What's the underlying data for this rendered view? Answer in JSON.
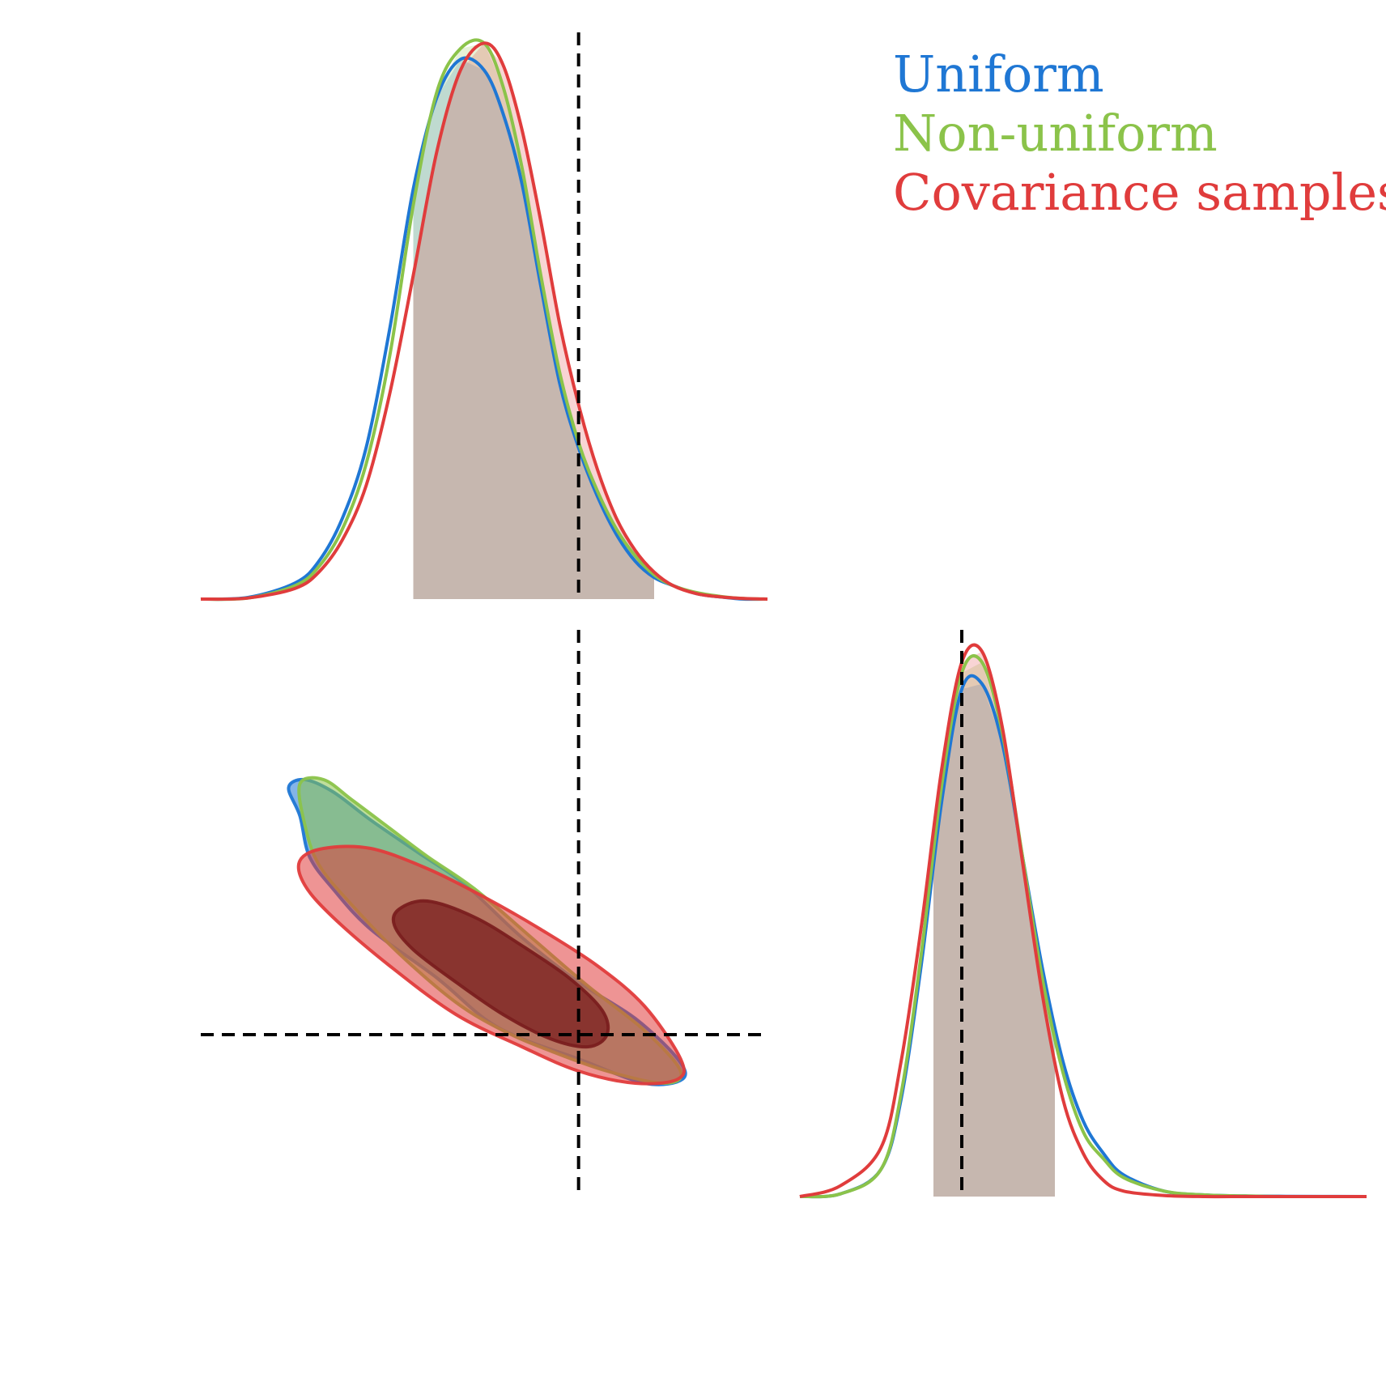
{
  "chart_data": {
    "type": "corner",
    "legend": {
      "placement": "top-right",
      "entries": [
        {
          "label": "Uniform",
          "color": "#1f77d4"
        },
        {
          "label": "Non-uniform",
          "color": "#8bc34a"
        },
        {
          "label": "Covariance samples",
          "color": "#e03c3c"
        }
      ]
    },
    "truth": {
      "p1": 0.0,
      "p2": 0.0
    },
    "axes": {
      "p1_range": [
        -4.0,
        2.0
      ],
      "p2_range": [
        -2.0,
        5.0
      ],
      "density_range": [
        0,
        1.05
      ]
    },
    "marginal_p1": {
      "x": [
        -4.0,
        -3.5,
        -3.0,
        -2.75,
        -2.5,
        -2.25,
        -2.0,
        -1.75,
        -1.5,
        -1.25,
        -1.0,
        -0.8,
        -0.6,
        -0.4,
        -0.2,
        0.0,
        0.2,
        0.4,
        0.6,
        0.8,
        1.0,
        1.25,
        1.5,
        1.75,
        2.0
      ],
      "series": [
        {
          "name": "Uniform",
          "color": "#1f77d4",
          "y": [
            0.0,
            0.003,
            0.03,
            0.07,
            0.15,
            0.28,
            0.5,
            0.76,
            0.93,
            1.0,
            0.98,
            0.9,
            0.77,
            0.58,
            0.4,
            0.28,
            0.19,
            0.12,
            0.07,
            0.04,
            0.025,
            0.01,
            0.004,
            0.0,
            0.0
          ]
        },
        {
          "name": "Non-uniform",
          "color": "#8bc34a",
          "y": [
            0.0,
            0.002,
            0.025,
            0.06,
            0.13,
            0.25,
            0.45,
            0.73,
            0.94,
            1.02,
            1.03,
            0.95,
            0.8,
            0.6,
            0.42,
            0.29,
            0.2,
            0.13,
            0.08,
            0.045,
            0.025,
            0.012,
            0.005,
            0.001,
            0.0
          ]
        },
        {
          "name": "Covariance samples",
          "color": "#e03c3c",
          "y": [
            0.0,
            0.002,
            0.02,
            0.05,
            0.11,
            0.21,
            0.38,
            0.6,
            0.83,
            0.98,
            1.03,
            0.99,
            0.87,
            0.7,
            0.51,
            0.36,
            0.24,
            0.15,
            0.09,
            0.05,
            0.025,
            0.01,
            0.004,
            0.001,
            0.0
          ]
        }
      ],
      "credible_interval": [
        -1.75,
        0.8
      ]
    },
    "marginal_p2": {
      "x": [
        -2.0,
        -1.5,
        -1.0,
        -0.75,
        -0.5,
        -0.25,
        0.0,
        0.25,
        0.5,
        0.75,
        1.0,
        1.25,
        1.5,
        1.75,
        2.0,
        2.5,
        3.0,
        3.5,
        4.0,
        5.0
      ],
      "series": [
        {
          "name": "Uniform",
          "color": "#1f77d4",
          "y": [
            0.0,
            0.005,
            0.05,
            0.18,
            0.43,
            0.73,
            0.94,
            0.95,
            0.84,
            0.63,
            0.42,
            0.25,
            0.14,
            0.08,
            0.04,
            0.01,
            0.003,
            0.001,
            0.0005,
            0.0
          ]
        },
        {
          "name": "Non-uniform",
          "color": "#8bc34a",
          "y": [
            0.0,
            0.005,
            0.05,
            0.19,
            0.45,
            0.76,
            0.97,
            0.99,
            0.86,
            0.63,
            0.4,
            0.23,
            0.12,
            0.07,
            0.035,
            0.01,
            0.003,
            0.001,
            0.0,
            0.0
          ]
        },
        {
          "name": "Covariance samples",
          "color": "#e03c3c",
          "y": [
            0.0,
            0.02,
            0.09,
            0.25,
            0.5,
            0.79,
            0.99,
            1.01,
            0.87,
            0.62,
            0.37,
            0.18,
            0.08,
            0.03,
            0.01,
            0.002,
            0.0,
            0.0,
            0.0,
            0.0
          ]
        }
      ],
      "credible_interval": [
        -0.35,
        1.15
      ]
    },
    "joint": {
      "contours": [
        {
          "name": "Uniform",
          "color": "#1f77d4",
          "level": "outer",
          "points": [
            [
              -3.07,
              3.05
            ],
            [
              -2.9,
              3.15
            ],
            [
              -2.6,
              3.0
            ],
            [
              -2.2,
              2.65
            ],
            [
              -1.7,
              2.25
            ],
            [
              -1.2,
              1.85
            ],
            [
              -0.6,
              1.2
            ],
            [
              0.0,
              0.65
            ],
            [
              0.6,
              0.2
            ],
            [
              1.05,
              -0.3
            ],
            [
              1.1,
              -0.55
            ],
            [
              0.7,
              -0.6
            ],
            [
              0.0,
              -0.3
            ],
            [
              -0.6,
              -0.05
            ],
            [
              -1.0,
              0.2
            ],
            [
              -1.5,
              0.7
            ],
            [
              -2.2,
              1.3
            ],
            [
              -2.6,
              1.8
            ],
            [
              -2.85,
              2.2
            ],
            [
              -2.95,
              2.7
            ]
          ]
        },
        {
          "name": "Non-uniform",
          "color": "#8bc34a",
          "level": "outer",
          "points": [
            [
              -2.95,
              3.1
            ],
            [
              -2.7,
              3.15
            ],
            [
              -2.4,
              2.9
            ],
            [
              -2.0,
              2.55
            ],
            [
              -1.6,
              2.2
            ],
            [
              -1.1,
              1.8
            ],
            [
              -0.5,
              1.2
            ],
            [
              0.1,
              0.6
            ],
            [
              0.7,
              0.05
            ],
            [
              1.08,
              -0.45
            ],
            [
              0.9,
              -0.6
            ],
            [
              0.3,
              -0.45
            ],
            [
              -0.3,
              -0.2
            ],
            [
              -0.8,
              0.05
            ],
            [
              -1.3,
              0.4
            ],
            [
              -1.9,
              1.0
            ],
            [
              -2.4,
              1.6
            ],
            [
              -2.75,
              2.1
            ],
            [
              -2.9,
              2.6
            ]
          ]
        },
        {
          "name": "Covariance samples",
          "color": "#e03c3c",
          "level": "outer",
          "points": [
            [
              -2.95,
              2.15
            ],
            [
              -2.7,
              2.3
            ],
            [
              -2.2,
              2.3
            ],
            [
              -1.6,
              2.05
            ],
            [
              -1.0,
              1.7
            ],
            [
              -0.4,
              1.3
            ],
            [
              0.2,
              0.85
            ],
            [
              0.7,
              0.35
            ],
            [
              1.08,
              -0.3
            ],
            [
              1.05,
              -0.55
            ],
            [
              0.6,
              -0.6
            ],
            [
              0.0,
              -0.45
            ],
            [
              -0.6,
              -0.15
            ],
            [
              -1.3,
              0.25
            ],
            [
              -2.0,
              0.85
            ],
            [
              -2.6,
              1.45
            ],
            [
              -2.9,
              1.85
            ]
          ]
        },
        {
          "name": "Covariance samples",
          "color": "#7a1f1f",
          "level": "inner",
          "points": [
            [
              -1.9,
              1.55
            ],
            [
              -1.6,
              1.65
            ],
            [
              -1.1,
              1.45
            ],
            [
              -0.6,
              1.1
            ],
            [
              -0.1,
              0.7
            ],
            [
              0.25,
              0.3
            ],
            [
              0.3,
              0.0
            ],
            [
              0.1,
              -0.15
            ],
            [
              -0.3,
              -0.05
            ],
            [
              -0.8,
              0.25
            ],
            [
              -1.3,
              0.65
            ],
            [
              -1.75,
              1.05
            ],
            [
              -1.95,
              1.35
            ]
          ]
        }
      ]
    }
  }
}
